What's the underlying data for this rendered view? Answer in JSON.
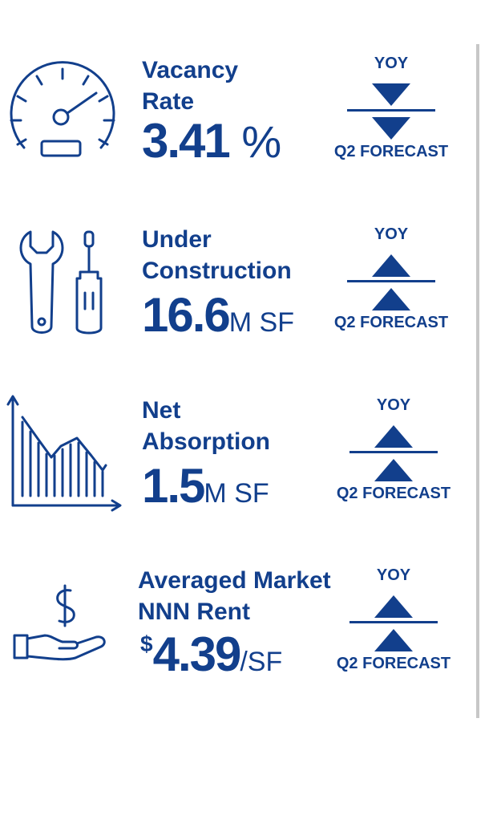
{
  "stats": [
    {
      "label_line1": "Vacancy",
      "label_line2": "Rate",
      "value_prefix": "",
      "value_number": "3.41",
      "value_unit": " %",
      "yoy_label": "YOY",
      "forecast_label": "Q2 FORECAST",
      "yoy_direction": "down",
      "forecast_direction": "down"
    },
    {
      "label_line1": "Under",
      "label_line2": "Construction",
      "value_prefix": "",
      "value_number": "16.6",
      "value_unit": "M SF",
      "yoy_label": "YOY",
      "forecast_label": "Q2 FORECAST",
      "yoy_direction": "up",
      "forecast_direction": "up"
    },
    {
      "label_line1": "Net",
      "label_line2": "Absorption",
      "value_prefix": "",
      "value_number": "1.5",
      "value_unit": "M SF",
      "yoy_label": "YOY",
      "forecast_label": "Q2 FORECAST",
      "yoy_direction": "up",
      "forecast_direction": "up"
    },
    {
      "label_line1": "Averaged Market",
      "label_line2": "NNN Rent",
      "value_prefix": "$",
      "value_number": "4.39",
      "value_unit": "/SF",
      "yoy_label": "YOY",
      "forecast_label": "Q2 FORECAST",
      "yoy_direction": "up",
      "forecast_direction": "up"
    }
  ],
  "icons": [
    "speedometer-icon",
    "tools-icon",
    "declining-chart-icon",
    "dollar-hand-icon"
  ],
  "colors": {
    "primary": "#123f8c",
    "divider": "#c7c7c7"
  }
}
